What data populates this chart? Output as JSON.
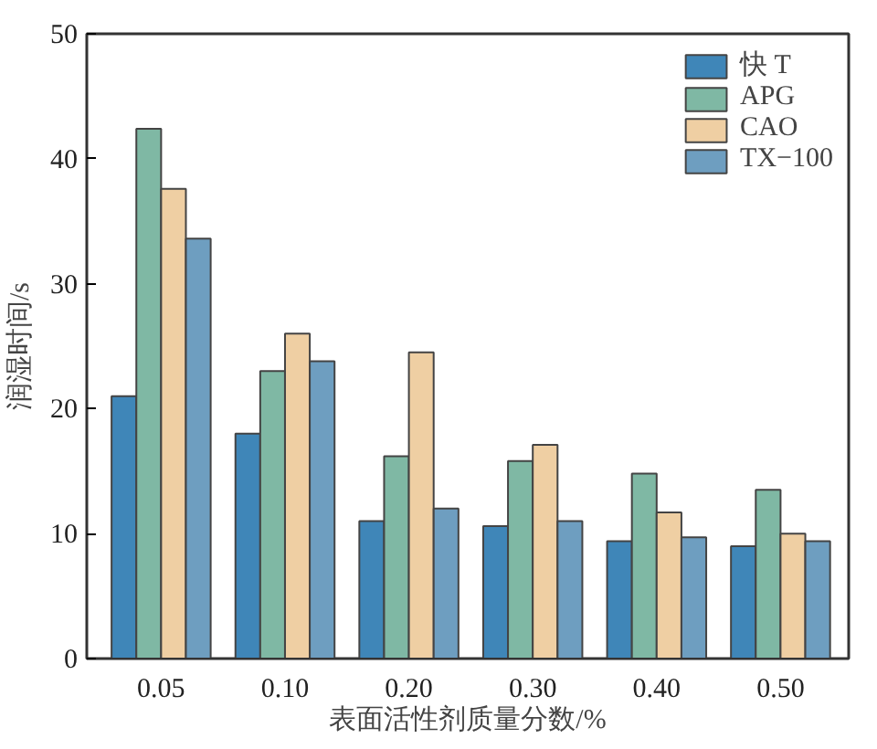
{
  "chart_data": {
    "type": "bar",
    "xlabel": "表面活性剂质量分数/%",
    "ylabel": "润湿时间/s",
    "categories": [
      "0.05",
      "0.10",
      "0.20",
      "0.30",
      "0.40",
      "0.50"
    ],
    "series": [
      {
        "name": "快 T",
        "color": "#3f86b8",
        "values": [
          21,
          18,
          11,
          10.6,
          9.4,
          9.0
        ]
      },
      {
        "name": "APG",
        "color": "#7fb8a4",
        "values": [
          42.4,
          23,
          16.2,
          15.8,
          14.8,
          13.5
        ]
      },
      {
        "name": "CAO",
        "color": "#efcfa3",
        "values": [
          37.6,
          26,
          24.5,
          17.1,
          11.7,
          10
        ]
      },
      {
        "name": "TX−100",
        "color": "#6e9ec0",
        "values": [
          33.6,
          23.8,
          12,
          11,
          9.7,
          9.4
        ]
      }
    ],
    "ylim": [
      0,
      50
    ],
    "yticks": [
      0,
      10,
      20,
      30,
      40,
      50
    ],
    "grid": false,
    "legend": "top right"
  }
}
